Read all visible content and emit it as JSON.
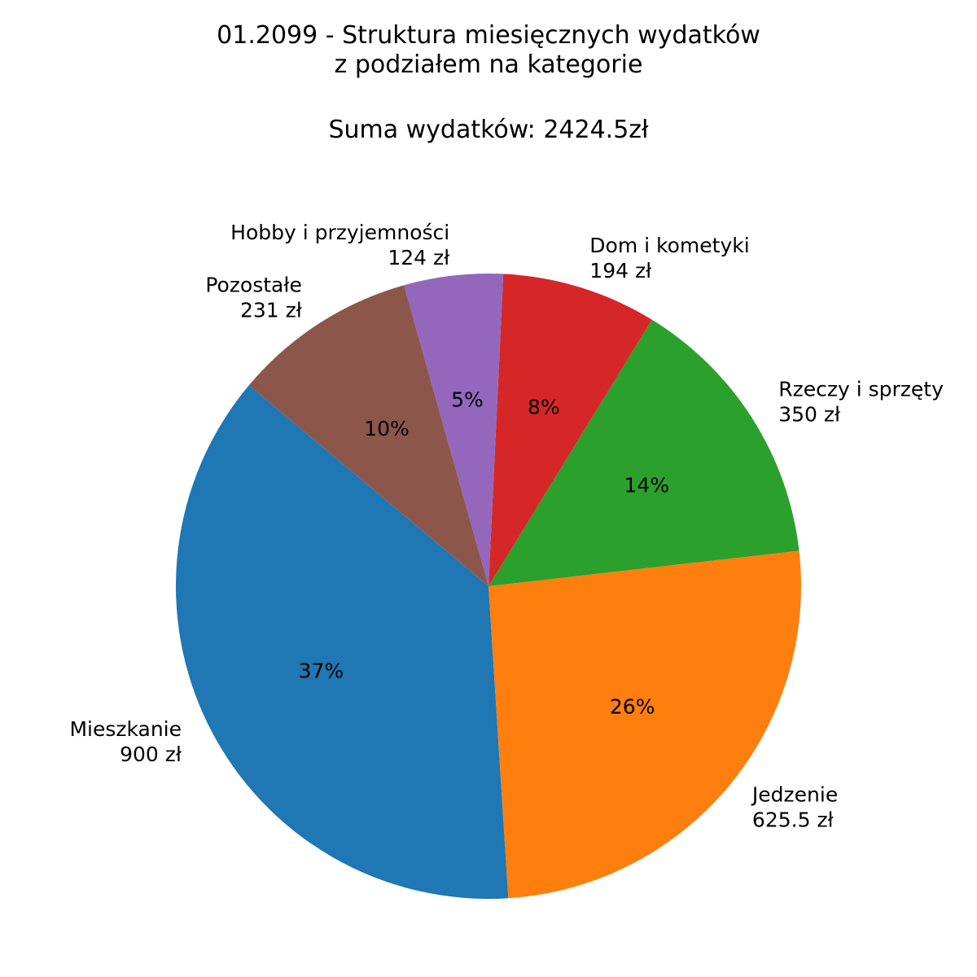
{
  "chart_data": {
    "type": "pie",
    "title_lines": [
      "01.2099 - Struktura miesięcznych wydatków",
      "z podziałem na kategorie"
    ],
    "subtitle": "Suma wydatków: 2424.5zł",
    "start_angle_deg": 140,
    "direction": "counterclockwise",
    "slices": [
      {
        "name": "Mieszkanie",
        "value": 900,
        "value_label": "900 zł",
        "percent_label": "37%",
        "color": "#1f77b4"
      },
      {
        "name": "Jedzenie",
        "value": 625.5,
        "value_label": "625.5 zł",
        "percent_label": "26%",
        "color": "#ff7f0e"
      },
      {
        "name": "Rzeczy i sprzęty",
        "value": 350,
        "value_label": "350 zł",
        "percent_label": "14%",
        "color": "#2ca02c"
      },
      {
        "name": "Dom i kometyki",
        "value": 194,
        "value_label": "194 zł",
        "percent_label": "8%",
        "color": "#d62728"
      },
      {
        "name": "Hobby i przyjemności",
        "value": 124,
        "value_label": "124 zł",
        "percent_label": "5%",
        "color": "#9467bd"
      },
      {
        "name": "Pozostałe",
        "value": 231,
        "value_label": "231 zł",
        "percent_label": "10%",
        "color": "#8c564b"
      }
    ]
  }
}
